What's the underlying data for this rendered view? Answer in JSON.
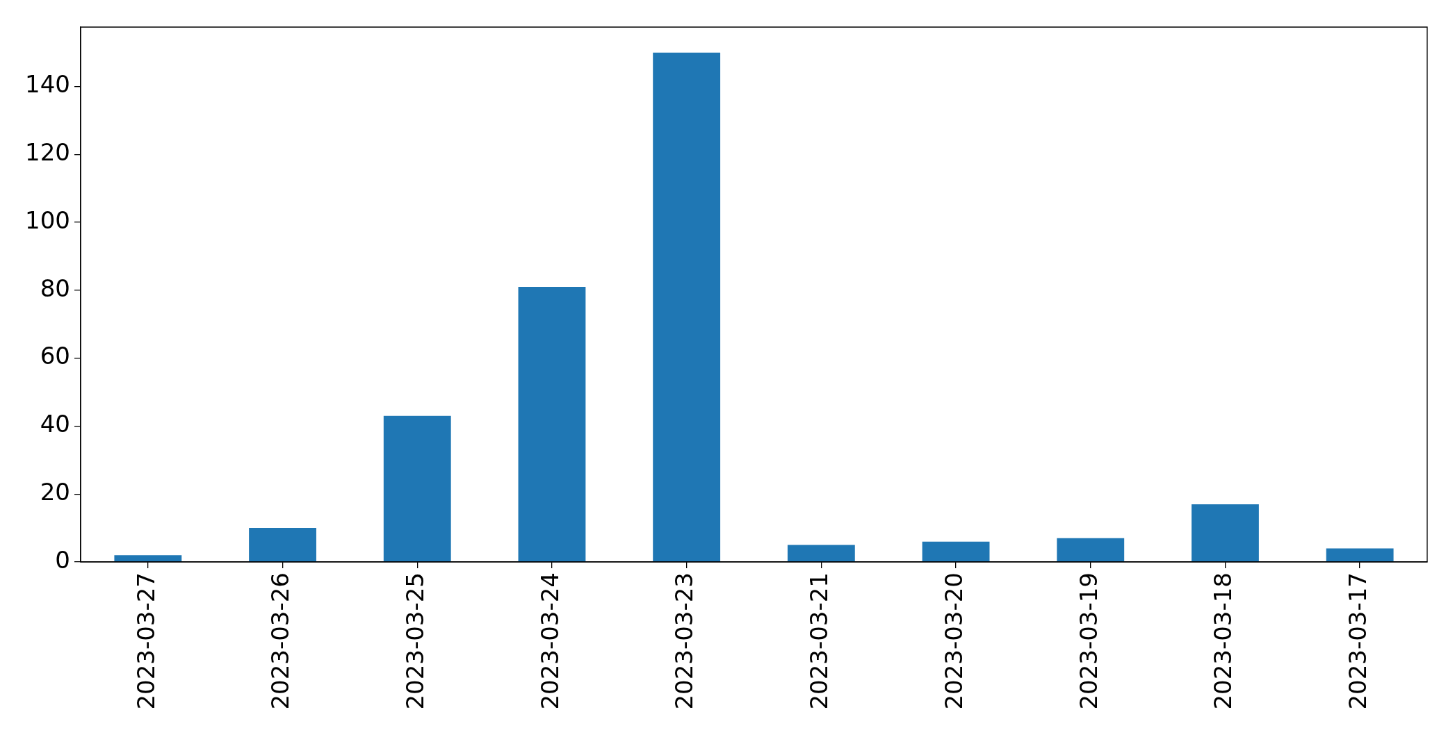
{
  "chart_data": {
    "type": "bar",
    "categories": [
      "2023-03-27",
      "2023-03-26",
      "2023-03-25",
      "2023-03-24",
      "2023-03-23",
      "2023-03-21",
      "2023-03-20",
      "2023-03-19",
      "2023-03-18",
      "2023-03-17"
    ],
    "values": [
      2,
      10,
      43,
      81,
      150,
      5,
      6,
      7,
      17,
      4
    ],
    "color": "#1f77b4",
    "ylim": [
      0,
      157.5
    ],
    "yticks": [
      0,
      20,
      40,
      60,
      80,
      100,
      120,
      140
    ],
    "grid": false,
    "legend": false
  }
}
